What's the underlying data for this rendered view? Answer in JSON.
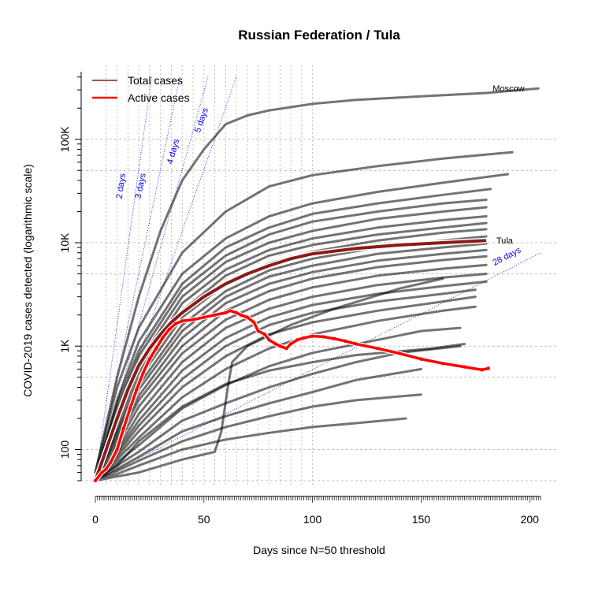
{
  "chart_data": {
    "type": "line",
    "title": "Russian Federation / Tula",
    "xlabel": "Days since N=50 threshold",
    "ylabel": "COVID-2019 cases detected (logarithmic scale)",
    "x_scale": "linear",
    "y_scale": "log",
    "xlim": [
      0,
      205
    ],
    "ylim": [
      50,
      450000
    ],
    "x_ticks": [
      0,
      50,
      100,
      150,
      200
    ],
    "x_tick_labels": [
      "0",
      "50",
      "100",
      "150",
      "200"
    ],
    "y_ticks": [
      100,
      1000,
      10000,
      100000
    ],
    "y_tick_labels": [
      "100",
      "1K",
      "10K",
      "100K"
    ],
    "grid": true,
    "legend": {
      "position": "top-left",
      "entries": [
        {
          "label": "Total cases",
          "color": "#8b1a1a"
        },
        {
          "label": "Active cases",
          "color": "#ff0000"
        }
      ]
    },
    "reference_lines": [
      {
        "label": "2 days",
        "doubling_days": 2,
        "label_x": 13,
        "label_y": 35000
      },
      {
        "label": "3 days",
        "doubling_days": 3,
        "label_x": 22,
        "label_y": 35000
      },
      {
        "label": "4 days",
        "doubling_days": 4,
        "label_x": 37,
        "label_y": 75000
      },
      {
        "label": "5 days",
        "doubling_days": 5,
        "label_x": 50,
        "label_y": 150000
      },
      {
        "label": "28 days",
        "doubling_days": 28,
        "label_x": 190,
        "label_y": 7000
      }
    ],
    "highlight_series": [
      {
        "name": "Tula",
        "kind": "total",
        "color": "#8b1a1a",
        "x": [
          0,
          5,
          10,
          15,
          20,
          25,
          30,
          35,
          40,
          50,
          60,
          70,
          80,
          90,
          100,
          120,
          140,
          160,
          180
        ],
        "y": [
          50,
          100,
          200,
          380,
          650,
          950,
          1300,
          1700,
          2100,
          3000,
          4000,
          5000,
          6000,
          7000,
          7800,
          8800,
          9500,
          10000,
          10500
        ]
      },
      {
        "name": "",
        "kind": "active",
        "color": "#ff0000",
        "x": [
          0,
          3,
          5,
          7,
          10,
          13,
          16,
          19,
          22,
          25,
          28,
          31,
          34,
          37,
          40,
          45,
          50,
          55,
          60,
          62,
          65,
          67,
          70,
          73,
          75,
          78,
          80,
          83,
          85,
          88,
          90,
          93,
          96,
          100,
          105,
          110,
          115,
          120,
          130,
          140,
          150,
          160,
          170,
          178,
          181
        ],
        "y": [
          50,
          60,
          65,
          75,
          100,
          160,
          250,
          380,
          550,
          750,
          950,
          1200,
          1450,
          1650,
          1750,
          1800,
          1900,
          2000,
          2100,
          2200,
          2100,
          2000,
          1900,
          1700,
          1400,
          1300,
          1150,
          1050,
          1000,
          950,
          1050,
          1150,
          1200,
          1250,
          1230,
          1180,
          1120,
          1050,
          950,
          850,
          750,
          680,
          630,
          590,
          610
        ]
      }
    ],
    "labeled_regions": [
      {
        "name": "Moscow",
        "x_end": 204,
        "y_end": 310000
      },
      {
        "name": "Tula",
        "x_end": 181,
        "y_end": 10500
      }
    ],
    "background_series": [
      {
        "x": [
          0,
          10,
          20,
          30,
          40,
          50,
          60,
          70,
          80,
          100,
          120,
          150,
          180,
          204
        ],
        "y": [
          60,
          500,
          3000,
          13000,
          40000,
          80000,
          140000,
          170000,
          190000,
          220000,
          240000,
          260000,
          280000,
          310000
        ]
      },
      {
        "x": [
          0,
          10,
          20,
          40,
          60,
          80,
          100,
          130,
          160,
          192
        ],
        "y": [
          60,
          400,
          1500,
          8000,
          20000,
          35000,
          45000,
          55000,
          65000,
          75000
        ]
      },
      {
        "x": [
          0,
          10,
          20,
          40,
          60,
          80,
          100,
          130,
          160,
          190
        ],
        "y": [
          55,
          300,
          1100,
          5000,
          11000,
          18000,
          24000,
          31000,
          38000,
          46000
        ]
      },
      {
        "x": [
          0,
          10,
          20,
          40,
          60,
          80,
          100,
          130,
          160,
          182
        ],
        "y": [
          55,
          280,
          900,
          4000,
          9000,
          14000,
          19000,
          24000,
          29000,
          33000
        ]
      },
      {
        "x": [
          0,
          10,
          20,
          40,
          60,
          80,
          100,
          130,
          160,
          180
        ],
        "y": [
          55,
          250,
          800,
          3500,
          7500,
          12000,
          16000,
          20000,
          24000,
          26000
        ]
      },
      {
        "x": [
          0,
          10,
          20,
          40,
          60,
          80,
          100,
          130,
          160,
          180
        ],
        "y": [
          55,
          220,
          700,
          3000,
          6500,
          10000,
          13000,
          17000,
          20000,
          22000
        ]
      },
      {
        "x": [
          0,
          10,
          20,
          40,
          60,
          80,
          100,
          130,
          160,
          180
        ],
        "y": [
          55,
          200,
          600,
          2600,
          5500,
          8500,
          11000,
          14000,
          16500,
          18000
        ]
      },
      {
        "x": [
          0,
          10,
          20,
          40,
          60,
          80,
          100,
          130,
          160,
          180
        ],
        "y": [
          55,
          180,
          550,
          2200,
          4800,
          7500,
          9500,
          12000,
          14000,
          15500
        ]
      },
      {
        "x": [
          0,
          10,
          20,
          40,
          60,
          80,
          100,
          130,
          160,
          180
        ],
        "y": [
          55,
          160,
          480,
          1900,
          4000,
          6300,
          8200,
          10500,
          12500,
          13500
        ]
      },
      {
        "x": [
          0,
          10,
          20,
          40,
          60,
          80,
          100,
          130,
          160,
          180
        ],
        "y": [
          55,
          150,
          420,
          1600,
          3400,
          5400,
          7000,
          9000,
          10500,
          11500
        ]
      },
      {
        "x": [
          0,
          10,
          20,
          40,
          60,
          80,
          100,
          130,
          160,
          180
        ],
        "y": [
          55,
          140,
          380,
          1400,
          3000,
          4700,
          6000,
          7800,
          9000,
          9800
        ]
      },
      {
        "x": [
          0,
          10,
          20,
          40,
          60,
          80,
          100,
          130,
          160,
          180
        ],
        "y": [
          55,
          130,
          330,
          1200,
          2600,
          4000,
          5200,
          6700,
          7800,
          8500
        ]
      },
      {
        "x": [
          0,
          10,
          20,
          40,
          60,
          80,
          100,
          130,
          160,
          180
        ],
        "y": [
          55,
          120,
          300,
          1000,
          2200,
          3400,
          4500,
          5800,
          6800,
          7400
        ]
      },
      {
        "x": [
          0,
          10,
          20,
          40,
          60,
          80,
          100,
          130,
          160,
          180
        ],
        "y": [
          55,
          110,
          260,
          850,
          1800,
          2800,
          3700,
          4800,
          5600,
          6100
        ]
      },
      {
        "x": [
          0,
          10,
          20,
          40,
          60,
          80,
          100,
          130,
          160,
          180
        ],
        "y": [
          52,
          100,
          220,
          700,
          1500,
          2300,
          3000,
          3900,
          4600,
          5000
        ]
      },
      {
        "x": [
          0,
          10,
          20,
          40,
          60,
          80,
          100,
          130,
          160,
          180
        ],
        "y": [
          52,
          95,
          190,
          580,
          1200,
          1900,
          2500,
          3200,
          3800,
          4200
        ]
      },
      {
        "x": [
          0,
          10,
          20,
          40,
          60,
          80,
          100,
          130,
          160,
          175
        ],
        "y": [
          52,
          90,
          170,
          480,
          1000,
          1600,
          2100,
          2700,
          3200,
          3500
        ]
      },
      {
        "x": [
          0,
          10,
          20,
          40,
          60,
          80,
          100,
          130,
          160,
          175
        ],
        "y": [
          52,
          85,
          150,
          400,
          800,
          1300,
          1700,
          2200,
          2700,
          3000
        ]
      },
      {
        "x": [
          0,
          10,
          20,
          40,
          60,
          80,
          100,
          130,
          160,
          175
        ],
        "y": [
          52,
          80,
          130,
          320,
          600,
          950,
          1300,
          1750,
          2200,
          2400
        ]
      },
      {
        "x": [
          0,
          10,
          20,
          40,
          60,
          80,
          100,
          130,
          150,
          168
        ],
        "y": [
          52,
          75,
          110,
          250,
          420,
          640,
          860,
          1150,
          1400,
          1500
        ]
      },
      {
        "x": [
          0,
          10,
          20,
          40,
          60,
          80,
          100,
          120,
          140,
          168
        ],
        "y": [
          52,
          70,
          95,
          190,
          280,
          400,
          540,
          700,
          860,
          1000
        ]
      },
      {
        "x": [
          0,
          10,
          20,
          40,
          60,
          80,
          100,
          120,
          150
        ],
        "y": [
          52,
          65,
          85,
          150,
          210,
          280,
          360,
          470,
          600
        ]
      },
      {
        "x": [
          0,
          10,
          20,
          40,
          60,
          80,
          100,
          120,
          150
        ],
        "y": [
          52,
          62,
          78,
          120,
          165,
          210,
          260,
          300,
          340
        ]
      },
      {
        "x": [
          0,
          10,
          20,
          40,
          60,
          80,
          100,
          120,
          143
        ],
        "y": [
          52,
          58,
          70,
          100,
          125,
          145,
          165,
          180,
          200
        ]
      },
      {
        "x": [
          0,
          10,
          20,
          40,
          60,
          80,
          100,
          120,
          155,
          170
        ],
        "y": [
          52,
          70,
          120,
          260,
          430,
          580,
          700,
          820,
          950,
          1050
        ]
      },
      {
        "x": [
          0,
          10,
          20,
          40,
          55,
          58,
          61,
          63,
          70,
          90,
          110,
          140,
          160
        ],
        "y": [
          50,
          55,
          60,
          80,
          95,
          150,
          400,
          700,
          1000,
          1600,
          2300,
          3600,
          4500
        ]
      }
    ]
  }
}
